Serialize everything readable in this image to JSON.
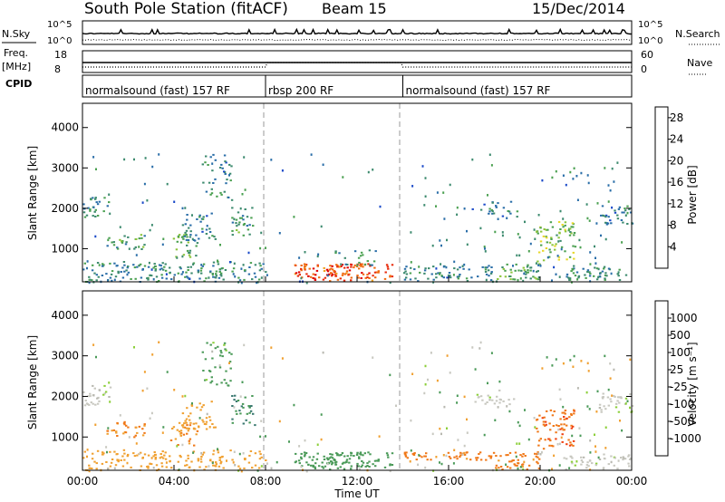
{
  "header": {
    "station": "South Pole Station (fitACF)",
    "beam": "Beam 15",
    "date": "15/Dec/2014"
  },
  "summary_panel": {
    "nsky_label": "N.Sky",
    "nsearch_label": "N.Search",
    "exp_top": "10^5",
    "exp_bottom": "10^0",
    "freq_label": "Freq.",
    "freq_unit": "[MHz]",
    "freq_ticks": [
      "18",
      "8"
    ],
    "nave_label": "Nave",
    "nave_ticks": [
      "60",
      "0"
    ],
    "cpid_label": "CPID"
  },
  "cpid_segments": [
    {
      "label": "normalsound (fast) 157 RF",
      "start_hour": 0,
      "end_hour": 8
    },
    {
      "label": "rbsp 200 RF",
      "start_hour": 8,
      "end_hour": 14
    },
    {
      "label": "normalsound (fast) 157 RF",
      "start_hour": 14,
      "end_hour": 24
    }
  ],
  "time_axis": {
    "label": "Time UT",
    "ticks": [
      "00:00",
      "04:00",
      "08:00",
      "12:00",
      "16:00",
      "20:00",
      "00:00"
    ]
  },
  "chart_data": [
    {
      "type": "heatmap",
      "name": "power",
      "xlabel": "Time UT",
      "ylabel": "Slant Range [km]",
      "xlim": [
        0,
        24
      ],
      "ylim": [
        180,
        4600
      ],
      "y_ticks": [
        1000,
        2000,
        3000,
        4000
      ],
      "colorbar": {
        "label": "Power [dB]",
        "ticks": [
          "4",
          "8",
          "12",
          "16",
          "20",
          "24",
          "28"
        ],
        "range": [
          0,
          30
        ],
        "colors": [
          "#0a1aff",
          "#1848c8",
          "#2a6ea8",
          "#3c8a6e",
          "#4aa050",
          "#8cc43c",
          "#e8d82a",
          "#f0a020",
          "#f06a10",
          "#e82a0a",
          "#e00000"
        ]
      },
      "echo_regions": [
        {
          "t0": 0.0,
          "t1": 8.0,
          "r0": 200,
          "r1": 700,
          "value": 9,
          "density": 0.5
        },
        {
          "t0": 0.0,
          "t1": 1.2,
          "r0": 1800,
          "r1": 2300,
          "value": 9,
          "density": 0.55
        },
        {
          "t0": 1.0,
          "t1": 2.8,
          "r0": 1000,
          "r1": 1400,
          "value": 11,
          "density": 0.45
        },
        {
          "t0": 3.8,
          "t1": 5.0,
          "r0": 800,
          "r1": 1400,
          "value": 12,
          "density": 0.45
        },
        {
          "t0": 4.3,
          "t1": 5.8,
          "r0": 1200,
          "r1": 1900,
          "value": 8,
          "density": 0.45
        },
        {
          "t0": 5.2,
          "t1": 6.5,
          "r0": 2200,
          "r1": 3400,
          "value": 8,
          "density": 0.3
        },
        {
          "t0": 6.5,
          "t1": 7.5,
          "r0": 1300,
          "r1": 2100,
          "value": 10,
          "density": 0.45
        },
        {
          "t0": 9.2,
          "t1": 13.5,
          "r0": 220,
          "r1": 650,
          "value": 26,
          "density": 0.85
        },
        {
          "t0": 11.0,
          "t1": 12.8,
          "r0": 600,
          "r1": 1000,
          "value": 10,
          "density": 0.35
        },
        {
          "t0": 14.0,
          "t1": 18.0,
          "r0": 220,
          "r1": 600,
          "value": 8,
          "density": 0.5
        },
        {
          "t0": 18.0,
          "t1": 20.0,
          "r0": 220,
          "r1": 650,
          "value": 12,
          "density": 0.6
        },
        {
          "t0": 19.8,
          "t1": 21.5,
          "r0": 700,
          "r1": 1700,
          "value": 14,
          "density": 0.5
        },
        {
          "t0": 21.0,
          "t1": 24.0,
          "r0": 220,
          "r1": 600,
          "value": 9,
          "density": 0.5
        },
        {
          "t0": 22.5,
          "t1": 24.0,
          "r0": 1600,
          "r1": 2100,
          "value": 7,
          "density": 0.5
        },
        {
          "t0": 17.0,
          "t1": 19.0,
          "r0": 1800,
          "r1": 2200,
          "value": 7,
          "density": 0.35
        }
      ]
    },
    {
      "type": "heatmap",
      "name": "velocity",
      "xlabel": "Time UT",
      "ylabel": "Slant Range [km]",
      "xlim": [
        0,
        24
      ],
      "ylim": [
        180,
        4600
      ],
      "y_ticks": [
        1000,
        2000,
        3000,
        4000
      ],
      "colorbar": {
        "label": "Velocity [m s⁻¹]",
        "ticks": [
          "1000",
          "500",
          "100",
          "25",
          "-25",
          "-100",
          "-500",
          "-1000"
        ],
        "colors": [
          "#2030c0",
          "#2858b0",
          "#3a7870",
          "#4a9a58",
          "#8ccf3a",
          "#c8c8c0",
          "#b8b8b0",
          "#f0a030",
          "#f07818",
          "#f04010",
          "#e00000"
        ]
      },
      "echo_regions": [
        {
          "t0": 0.0,
          "t1": 8.0,
          "r0": 200,
          "r1": 700,
          "value": -100,
          "density": 0.45
        },
        {
          "t0": 0.0,
          "t1": 1.2,
          "r0": 1800,
          "r1": 2300,
          "value": 0,
          "density": 0.55
        },
        {
          "t0": 1.0,
          "t1": 2.8,
          "r0": 1000,
          "r1": 1400,
          "value": -300,
          "density": 0.5
        },
        {
          "t0": 3.8,
          "t1": 5.0,
          "r0": 800,
          "r1": 1400,
          "value": -300,
          "density": 0.5
        },
        {
          "t0": 4.3,
          "t1": 5.8,
          "r0": 1200,
          "r1": 1900,
          "value": -150,
          "density": 0.45
        },
        {
          "t0": 5.2,
          "t1": 6.5,
          "r0": 2200,
          "r1": 3400,
          "value": 80,
          "density": 0.3
        },
        {
          "t0": 6.5,
          "t1": 7.5,
          "r0": 1300,
          "r1": 2100,
          "value": 300,
          "density": 0.45
        },
        {
          "t0": 9.2,
          "t1": 13.5,
          "r0": 220,
          "r1": 650,
          "value": 200,
          "density": 0.8
        },
        {
          "t0": 14.0,
          "t1": 18.0,
          "r0": 450,
          "r1": 650,
          "value": -400,
          "density": 0.7
        },
        {
          "t0": 18.0,
          "t1": 20.0,
          "r0": 220,
          "r1": 650,
          "value": -400,
          "density": 0.6
        },
        {
          "t0": 19.8,
          "t1": 21.5,
          "r0": 700,
          "r1": 1700,
          "value": -600,
          "density": 0.5
        },
        {
          "t0": 21.0,
          "t1": 24.0,
          "r0": 220,
          "r1": 600,
          "value": 0,
          "density": 0.5
        },
        {
          "t0": 22.5,
          "t1": 24.0,
          "r0": 1600,
          "r1": 2100,
          "value": 0,
          "density": 0.5
        },
        {
          "t0": 17.0,
          "t1": 19.0,
          "r0": 1800,
          "r1": 2200,
          "value": 0,
          "density": 0.35
        }
      ]
    }
  ]
}
